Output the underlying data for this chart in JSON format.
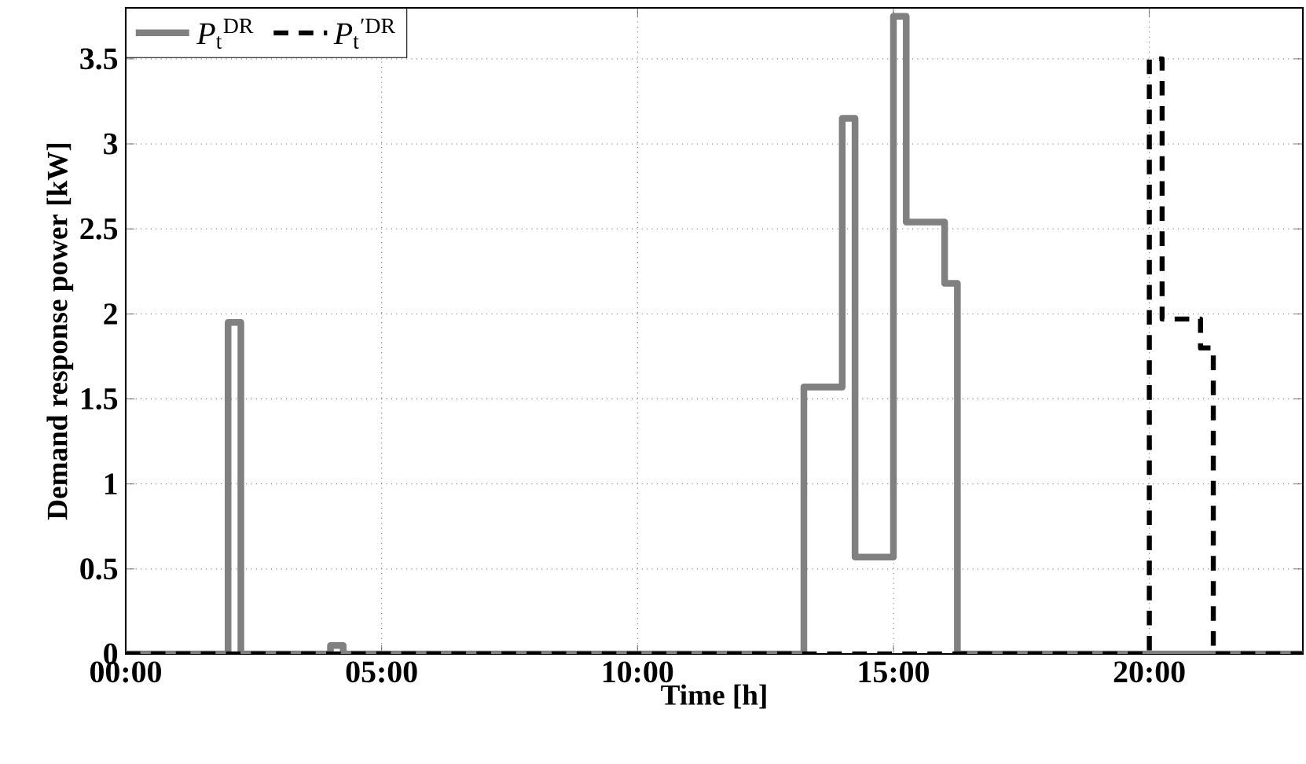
{
  "chart_data": {
    "type": "step",
    "xlabel": "Time [h]",
    "ylabel": "Demand response power [kW]",
    "xlim": [
      0,
      23
    ],
    "ylim": [
      0,
      3.8
    ],
    "xticks": [
      {
        "value": 0,
        "label": "00:00"
      },
      {
        "value": 5,
        "label": "05:00"
      },
      {
        "value": 10,
        "label": "10:00"
      },
      {
        "value": 15,
        "label": "15:00"
      },
      {
        "value": 20,
        "label": "20:00"
      }
    ],
    "yticks": [
      0,
      0.5,
      1,
      1.5,
      2,
      2.5,
      3,
      3.5
    ],
    "grid": true,
    "legend": "top left",
    "series": [
      {
        "name": "*P*$_{t}$$^{DR}$",
        "color": "#808080",
        "line_style": "solid",
        "x": [
          0,
          2,
          2.25,
          4,
          4.25,
          13.25,
          14,
          14.25,
          15,
          15.25,
          16,
          16.25,
          23
        ],
        "values": [
          0,
          1.95,
          0,
          0.05,
          0,
          1.57,
          3.15,
          0.57,
          3.75,
          2.54,
          2.18,
          0,
          0
        ]
      },
      {
        "name": "*P*$_{t}$$^{′DR}$",
        "color": "#000000",
        "line_style": "dashed",
        "x": [
          0,
          20,
          20.25,
          21,
          21.25,
          23
        ],
        "values": [
          0,
          3.5,
          1.97,
          1.8,
          0,
          0
        ]
      }
    ]
  }
}
